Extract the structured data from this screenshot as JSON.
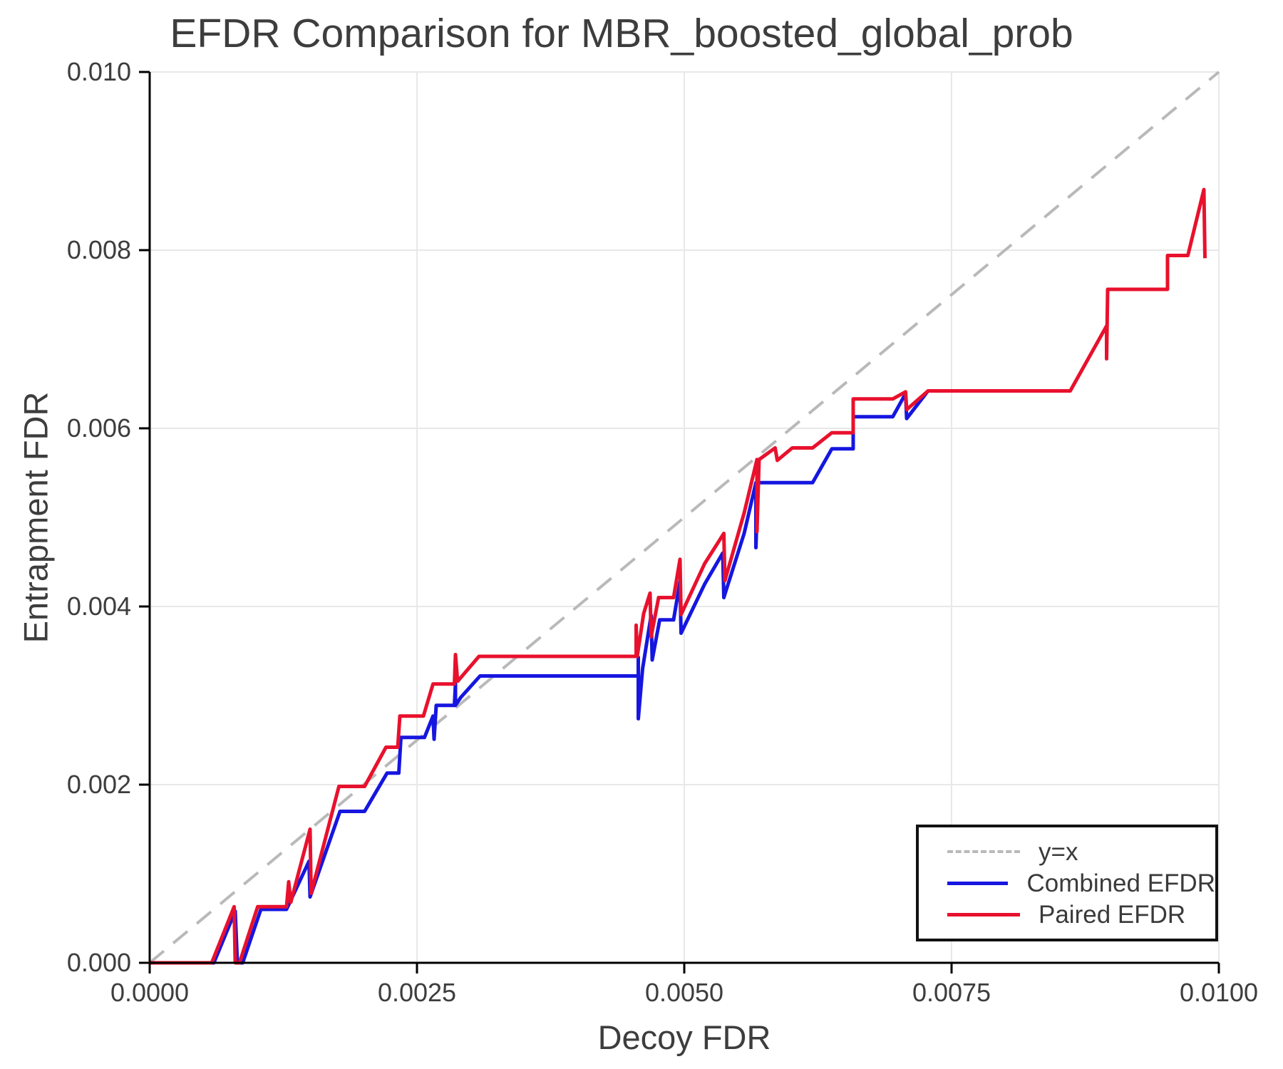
{
  "chart_data": {
    "type": "line",
    "title": "EFDR Comparison for MBR_boosted_global_prob",
    "xlabel": "Decoy FDR",
    "ylabel": "Entrapment FDR",
    "xlim": [
      0.0,
      0.01
    ],
    "ylim": [
      0.0,
      0.01
    ],
    "grid": true,
    "legend_position": "lower right",
    "colors": {
      "grid": "#e8e8e8",
      "spine": "#000000",
      "text": "#3d3d3d",
      "identity": "#b9b9b9",
      "combined": "#1616e0",
      "paired": "#e8112d"
    },
    "xticks": {
      "values": [
        0.0,
        0.0025,
        0.005,
        0.0075,
        0.01
      ],
      "labels": [
        "0.0000",
        "0.0025",
        "0.0050",
        "0.0075",
        "0.0100"
      ]
    },
    "yticks": {
      "values": [
        0.0,
        0.002,
        0.004,
        0.006,
        0.008,
        0.01
      ],
      "labels": [
        "0.000",
        "0.002",
        "0.004",
        "0.006",
        "0.008",
        "0.010"
      ]
    },
    "series": [
      {
        "name": "y=x",
        "color": "#b9b9b9",
        "dashed": true,
        "width": 4,
        "points": [
          [
            0.0,
            0.0
          ],
          [
            0.01,
            0.01
          ]
        ]
      },
      {
        "name": "Combined EFDR",
        "color": "#1616e0",
        "dashed": false,
        "width": 5,
        "points": [
          [
            0.0,
            0.0
          ],
          [
            0.0006,
            0.0
          ],
          [
            0.0008,
            0.00058
          ],
          [
            0.00082,
            0.0
          ],
          [
            0.00087,
            0.0
          ],
          [
            0.00104,
            0.0006
          ],
          [
            0.00128,
            0.0006
          ],
          [
            0.00149,
            0.00114
          ],
          [
            0.0015,
            0.00074
          ],
          [
            0.00178,
            0.0017
          ],
          [
            0.00201,
            0.0017
          ],
          [
            0.00222,
            0.00213
          ],
          [
            0.00233,
            0.00213
          ],
          [
            0.00235,
            0.00253
          ],
          [
            0.00257,
            0.00253
          ],
          [
            0.00265,
            0.00277
          ],
          [
            0.00266,
            0.00251
          ],
          [
            0.00268,
            0.00289
          ],
          [
            0.00285,
            0.00289
          ],
          [
            0.00286,
            0.00313
          ],
          [
            0.00286,
            0.00289
          ],
          [
            0.00291,
            0.00298
          ],
          [
            0.00309,
            0.00322
          ],
          [
            0.00457,
            0.00322
          ],
          [
            0.00457,
            0.00343
          ],
          [
            0.00457,
            0.00274
          ],
          [
            0.00461,
            0.0033
          ],
          [
            0.00469,
            0.0039
          ],
          [
            0.0047,
            0.0034
          ],
          [
            0.00477,
            0.00385
          ],
          [
            0.0049,
            0.00385
          ],
          [
            0.00496,
            0.00428
          ],
          [
            0.00497,
            0.0037
          ],
          [
            0.00519,
            0.00425
          ],
          [
            0.00536,
            0.0046
          ],
          [
            0.00537,
            0.0041
          ],
          [
            0.00556,
            0.00482
          ],
          [
            0.00567,
            0.00539
          ],
          [
            0.00567,
            0.00466
          ],
          [
            0.00569,
            0.00539
          ],
          [
            0.0062,
            0.00539
          ],
          [
            0.00638,
            0.00577
          ],
          [
            0.00658,
            0.00577
          ],
          [
            0.00658,
            0.00613
          ],
          [
            0.00695,
            0.00613
          ],
          [
            0.00707,
            0.00639
          ],
          [
            0.00708,
            0.00611
          ],
          [
            0.00728,
            0.00642
          ]
        ]
      },
      {
        "name": "Paired EFDR",
        "color": "#e8112d",
        "dashed": false,
        "width": 5,
        "points": [
          [
            0.0,
            0.0
          ],
          [
            0.00058,
            0.0
          ],
          [
            0.00079,
            0.00063
          ],
          [
            0.0008,
            0.0
          ],
          [
            0.00084,
            0.0
          ],
          [
            0.00101,
            0.00063
          ],
          [
            0.00128,
            0.00063
          ],
          [
            0.0013,
            0.00091
          ],
          [
            0.00132,
            0.00068
          ],
          [
            0.0015,
            0.0015
          ],
          [
            0.00151,
            0.00078
          ],
          [
            0.00177,
            0.00198
          ],
          [
            0.00201,
            0.00198
          ],
          [
            0.00221,
            0.00242
          ],
          [
            0.00232,
            0.00242
          ],
          [
            0.00234,
            0.00277
          ],
          [
            0.00256,
            0.00277
          ],
          [
            0.00265,
            0.00313
          ],
          [
            0.00285,
            0.00313
          ],
          [
            0.00286,
            0.00346
          ],
          [
            0.00288,
            0.00316
          ],
          [
            0.00308,
            0.00344
          ],
          [
            0.00455,
            0.00344
          ],
          [
            0.00455,
            0.00379
          ],
          [
            0.00456,
            0.00344
          ],
          [
            0.00462,
            0.00392
          ],
          [
            0.00468,
            0.00415
          ],
          [
            0.00469,
            0.00366
          ],
          [
            0.00476,
            0.0041
          ],
          [
            0.0049,
            0.0041
          ],
          [
            0.00496,
            0.00453
          ],
          [
            0.00497,
            0.00391
          ],
          [
            0.00519,
            0.00448
          ],
          [
            0.00537,
            0.00482
          ],
          [
            0.00538,
            0.00429
          ],
          [
            0.00556,
            0.00505
          ],
          [
            0.00568,
            0.00565
          ],
          [
            0.00568,
            0.00484
          ],
          [
            0.0057,
            0.00565
          ],
          [
            0.00585,
            0.00578
          ],
          [
            0.00587,
            0.00564
          ],
          [
            0.00601,
            0.00578
          ],
          [
            0.0062,
            0.00578
          ],
          [
            0.00638,
            0.00595
          ],
          [
            0.00658,
            0.00595
          ],
          [
            0.00658,
            0.00633
          ],
          [
            0.00695,
            0.00633
          ],
          [
            0.00707,
            0.00641
          ],
          [
            0.00708,
            0.00621
          ],
          [
            0.00728,
            0.00642
          ],
          [
            0.00861,
            0.00642
          ],
          [
            0.00895,
            0.00715
          ],
          [
            0.00895,
            0.00678
          ],
          [
            0.00896,
            0.00756
          ],
          [
            0.00952,
            0.00756
          ],
          [
            0.00952,
            0.00794
          ],
          [
            0.00971,
            0.00794
          ],
          [
            0.00986,
            0.00868
          ],
          [
            0.00987,
            0.00791
          ]
        ]
      }
    ]
  }
}
